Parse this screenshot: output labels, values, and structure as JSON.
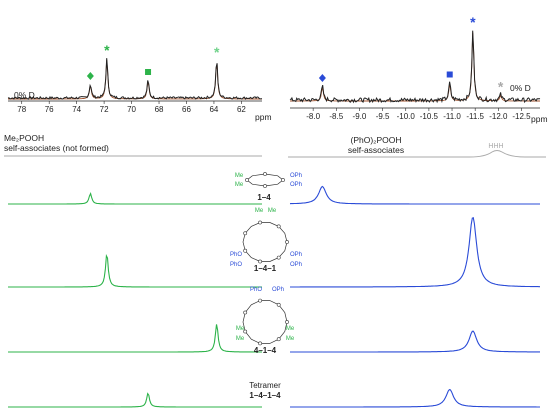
{
  "top_spectra": {
    "left": {
      "x_ticks": [
        78,
        76,
        74,
        72,
        70,
        68,
        66,
        64,
        62
      ],
      "unit": "ppm",
      "label": "0% D"
    },
    "right": {
      "x_ticks": [
        -8.0,
        -8.5,
        -9.0,
        -9.5,
        -10.0,
        -10.5,
        -11.0,
        -11.5,
        -12.0,
        -12.5
      ],
      "unit": "ppm",
      "label": "0% D"
    }
  },
  "left_header": {
    "line1": "Me₂POOH",
    "line2": "self-associates (not formed)"
  },
  "right_header": {
    "line1": "(PhO)₂POOH",
    "line2": "self-associates",
    "hhh": "HHH"
  },
  "structures": {
    "s1": {
      "label": "1–4"
    },
    "s2": {
      "label": "1–4–1",
      "ph1": "PhO",
      "ph2": "PhO",
      "ph3": "OPh",
      "ph4": "OPh"
    },
    "s3": {
      "label": "4–1–4",
      "ph1": "PhO",
      "ph2": "OPh"
    },
    "s4": {
      "label1": "Tetramer",
      "label2": "1–4–1–4"
    },
    "me": "Me",
    "oph": "OPh"
  },
  "colors": {
    "green": "#2db34a",
    "blue": "#2a4bd7",
    "black": "#222222",
    "gray": "#aaaaaa",
    "fit": "#a0522d"
  },
  "chart_data": [
    {
      "type": "line",
      "name": "top-left experimental 31P spectrum",
      "x_range": [
        79,
        60.5
      ],
      "peaks": [
        {
          "x": 73.0,
          "height": 0.35,
          "marker": "diamond",
          "color": "green"
        },
        {
          "x": 71.8,
          "height": 1.0,
          "marker": "asterisk",
          "color": "green"
        },
        {
          "x": 68.8,
          "height": 0.45,
          "marker": "square",
          "color": "green"
        },
        {
          "x": 63.8,
          "height": 0.95,
          "marker": "asterisk",
          "color": "light-green"
        }
      ]
    },
    {
      "type": "line",
      "name": "top-right experimental 31P spectrum",
      "x_range": [
        -7.5,
        -12.9
      ],
      "peaks": [
        {
          "x": -8.2,
          "height": 0.2,
          "marker": "diamond",
          "color": "blue"
        },
        {
          "x": -10.95,
          "height": 0.25,
          "marker": "square",
          "color": "blue"
        },
        {
          "x": -11.45,
          "height": 1.0,
          "marker": "asterisk",
          "color": "blue"
        },
        {
          "x": -12.05,
          "height": 0.08,
          "marker": "asterisk",
          "color": "gray"
        }
      ]
    },
    {
      "type": "line",
      "name": "computed spectra",
      "rows": [
        {
          "structure": "1–4",
          "left_peak": 73.0,
          "left_height": 0.3,
          "right_peak": -8.2,
          "right_height": 0.25
        },
        {
          "structure": "1–4–1",
          "left_peak": 71.8,
          "left_height": 0.95,
          "right_peak": -11.45,
          "right_height": 1.0
        },
        {
          "structure": "4–1–4",
          "left_peak": 63.8,
          "left_height": 0.8,
          "right_peak": -11.45,
          "right_height": 0.3
        },
        {
          "structure": "1–4–1–4",
          "left_peak": 68.8,
          "left_height": 0.4,
          "right_peak": -10.95,
          "right_height": 0.25
        }
      ]
    }
  ]
}
